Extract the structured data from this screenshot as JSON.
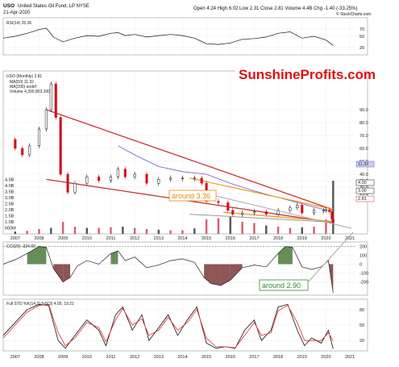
{
  "header": {
    "symbol": "USO",
    "name": "United States Oil Fund, LP NYSE",
    "date": "21-Apr-2020",
    "stats": "Open 4.24  High 6.02  Low 2.31  Close 2.81  Volume 4.4B  Chg -1.40 (-33.25%)",
    "credit": "© StockCharts.com"
  },
  "watermark": "SunshineProfits.com",
  "annotations": {
    "a336": "around 3.36",
    "a290": "around 2.90"
  },
  "legend": {
    "rsi": "RSI(14) 25.36",
    "price": "USO (Monthly) 2.81",
    "ma50": "MA(50) 11.32",
    "ma200": "MA(200) undef",
    "volume": "Volume 4,390,803,200",
    "cci": "CCI(20) -324.00",
    "sto": "Full STO %K(14,3) %D(3) 4.05, 19.21"
  },
  "colors": {
    "bull": "#111111",
    "bear": "#d01020",
    "channel_red": "#c8323c",
    "channel_orange": "#f0a020",
    "grey_line": "#999999",
    "ma50": "#6a5acd",
    "cci_fill_pos": "#4a7a3a",
    "cci_fill_neg": "#7a3838",
    "sto_k": "#111111",
    "sto_d": "#e03030",
    "annot_orange": "#e08a10",
    "annot_green": "#2e8b2e",
    "watermark_red": "#e01010"
  },
  "chart_data": [
    {
      "type": "line",
      "panel": "rsi",
      "name": "RSI(14)",
      "x": [
        2006.5,
        2007,
        2007.5,
        2008,
        2008.3,
        2008.6,
        2009,
        2009.5,
        2010,
        2010.5,
        2011,
        2011.3,
        2011.6,
        2012,
        2012.5,
        2013,
        2013.5,
        2014,
        2014.5,
        2015,
        2015.5,
        2016,
        2016.5,
        2017,
        2017.5,
        2018,
        2018.5,
        2019,
        2019.5,
        2020,
        2020.3
      ],
      "y": [
        45,
        50,
        58,
        68,
        72,
        48,
        35,
        45,
        52,
        50,
        58,
        60,
        52,
        55,
        48,
        52,
        55,
        52,
        45,
        30,
        28,
        32,
        42,
        44,
        48,
        58,
        62,
        45,
        50,
        40,
        25.36
      ],
      "ylim": [
        0,
        100
      ],
      "ticks": [
        20,
        50,
        70
      ],
      "tick_labels": [
        "20",
        "50",
        "70"
      ]
    },
    {
      "type": "line",
      "panel": "price",
      "name": "USO (Monthly) 2.81",
      "x": [
        2006.5,
        2007,
        2007.3,
        2007.6,
        2008,
        2008.3,
        2008.5,
        2008.7,
        2008.9,
        2009.2,
        2009.5,
        2010,
        2010.5,
        2011,
        2011.3,
        2011.6,
        2012,
        2012.5,
        2013,
        2013.5,
        2014,
        2014.5,
        2014.8,
        2015,
        2015.5,
        2015.9,
        2016.1,
        2016.5,
        2017,
        2017.5,
        2018,
        2018.5,
        2018.8,
        2019,
        2019.5,
        2019.9,
        2020.0,
        2020.15,
        2020.25,
        2020.3
      ],
      "y": [
        67,
        60,
        55,
        62,
        75,
        90,
        110,
        84,
        40,
        26,
        33,
        38,
        35,
        38,
        44,
        38,
        40,
        33,
        36,
        37,
        37,
        37,
        33,
        19,
        18,
        12,
        9,
        10,
        11,
        9,
        12,
        14,
        16,
        10,
        12,
        12,
        12.5,
        11,
        5,
        2.81
      ],
      "ylim": [
        0,
        120
      ],
      "ticks": [
        25,
        30,
        35,
        40,
        50,
        60,
        70,
        80,
        90
      ],
      "tick_labels": [
        "25.0",
        "30.0",
        "35.0",
        "40.0",
        "50.0",
        "60.0",
        "70.0",
        "80.0",
        "90.0"
      ],
      "ma50_x": [
        2011.3,
        2012,
        2013,
        2014,
        2015,
        2016,
        2017,
        2018,
        2019,
        2020.2
      ],
      "ma50_y": [
        62,
        55,
        46,
        42,
        40,
        33,
        27,
        22,
        17,
        11.32
      ],
      "channel_red_upper": {
        "x": [
          2008.3,
          2020.3
        ],
        "y": [
          90,
          12.5
        ]
      },
      "channel_red_lower": {
        "x": [
          2008.3,
          2020.3
        ],
        "y": [
          36,
          2.5
        ]
      },
      "channel_orange_upper": {
        "x": [
          2014.3,
          2020.3
        ],
        "y": [
          37,
          12.8
        ]
      },
      "channel_orange_lower": {
        "x": [
          2015.7,
          2020.3
        ],
        "y": [
          10.5,
          3.4
        ]
      },
      "grey_line": {
        "x": [
          2014.3,
          2020.3
        ],
        "y": [
          9,
          2.8
        ]
      },
      "right_markers": [
        "11.32",
        "4.00",
        "3.00",
        "2.81"
      ]
    },
    {
      "type": "bar",
      "panel": "volume",
      "name": "Volume",
      "x": [
        2007,
        2007.5,
        2008,
        2008.5,
        2009,
        2009.5,
        2010,
        2010.5,
        2011,
        2011.5,
        2012,
        2012.5,
        2013,
        2013.5,
        2014,
        2014.5,
        2015,
        2015.5,
        2016,
        2016.5,
        2017,
        2017.5,
        2018,
        2018.5,
        2019,
        2019.5,
        2020,
        2020.3
      ],
      "values": [
        0.2,
        0.25,
        0.4,
        0.5,
        1.0,
        0.6,
        0.5,
        0.5,
        0.55,
        0.6,
        0.5,
        0.4,
        0.35,
        0.3,
        0.3,
        0.45,
        1.2,
        1.3,
        1.4,
        1.0,
        0.9,
        0.7,
        0.6,
        0.5,
        0.55,
        0.6,
        1.2,
        4.4
      ],
      "ylim": [
        0,
        5
      ],
      "ticks": [
        0.5,
        1.0,
        1.5,
        2.0,
        2.5,
        3.0,
        3.5,
        4.0,
        4.5
      ],
      "tick_labels": [
        "500M",
        "1.0B",
        "1.5B",
        "2.0B",
        "2.5B",
        "3.0B",
        "3.5B",
        "4.0B",
        "4.5B"
      ]
    },
    {
      "type": "area",
      "panel": "cci",
      "name": "CCI(20)",
      "x": [
        2006.5,
        2007,
        2007.5,
        2008,
        2008.3,
        2008.6,
        2009,
        2009.3,
        2009.6,
        2010,
        2010.5,
        2011,
        2011.3,
        2011.6,
        2012,
        2012.5,
        2013,
        2013.5,
        2014,
        2014.5,
        2014.9,
        2015.2,
        2015.6,
        2016,
        2016.5,
        2017,
        2017.5,
        2018,
        2018.3,
        2018.6,
        2019,
        2019.4,
        2019.8,
        2020.1,
        2020.3
      ],
      "y": [
        0,
        50,
        120,
        200,
        190,
        -50,
        -200,
        -150,
        -20,
        40,
        0,
        120,
        150,
        40,
        80,
        -40,
        -10,
        40,
        60,
        20,
        -150,
        -220,
        -240,
        -180,
        -40,
        -10,
        -30,
        120,
        200,
        190,
        -30,
        -60,
        -30,
        40,
        -324
      ],
      "ylim": [
        -350,
        250
      ],
      "ticks": [
        -200,
        -100,
        0,
        100,
        200
      ],
      "tick_labels": [
        "-200",
        "-100",
        "0",
        "100",
        "200"
      ]
    },
    {
      "type": "line",
      "panel": "sto",
      "name": "Full STO",
      "x": [
        2006.5,
        2007,
        2007.5,
        2008,
        2008.4,
        2008.8,
        2009.1,
        2009.5,
        2010,
        2010.5,
        2010.8,
        2011.2,
        2011.5,
        2011.9,
        2012.3,
        2012.6,
        2013,
        2013.4,
        2013.8,
        2014.2,
        2014.6,
        2015,
        2015.4,
        2015.8,
        2016.2,
        2016.6,
        2017,
        2017.3,
        2017.7,
        2018,
        2018.4,
        2018.8,
        2019.1,
        2019.4,
        2019.8,
        2020.1,
        2020.3
      ],
      "k": [
        30,
        55,
        80,
        90,
        88,
        20,
        5,
        30,
        60,
        40,
        10,
        70,
        85,
        40,
        70,
        20,
        45,
        70,
        30,
        60,
        85,
        15,
        5,
        8,
        5,
        40,
        60,
        20,
        40,
        85,
        90,
        40,
        10,
        25,
        15,
        40,
        4.05
      ],
      "d": [
        25,
        50,
        75,
        88,
        90,
        35,
        10,
        25,
        55,
        45,
        18,
        60,
        82,
        50,
        62,
        30,
        40,
        65,
        40,
        55,
        80,
        25,
        8,
        8,
        6,
        30,
        55,
        30,
        35,
        78,
        88,
        55,
        20,
        20,
        20,
        35,
        19.21
      ],
      "ylim": [
        0,
        100
      ],
      "ticks": [
        20,
        50,
        80
      ],
      "tick_labels": [
        "20",
        "50",
        "80"
      ]
    }
  ],
  "x_axis": {
    "ticks": [
      2007,
      2008,
      2009,
      2010,
      2011,
      2012,
      2013,
      2014,
      2015,
      2016,
      2017,
      2018,
      2019,
      2020,
      2021
    ],
    "tick_labels": [
      "2007",
      "2008",
      "2009",
      "2010",
      "2011",
      "2012",
      "2013",
      "2014",
      "2015",
      "2016",
      "2017",
      "2018",
      "2019",
      "2020",
      "2021"
    ],
    "xlim": [
      2006.5,
      2021.2
    ]
  }
}
